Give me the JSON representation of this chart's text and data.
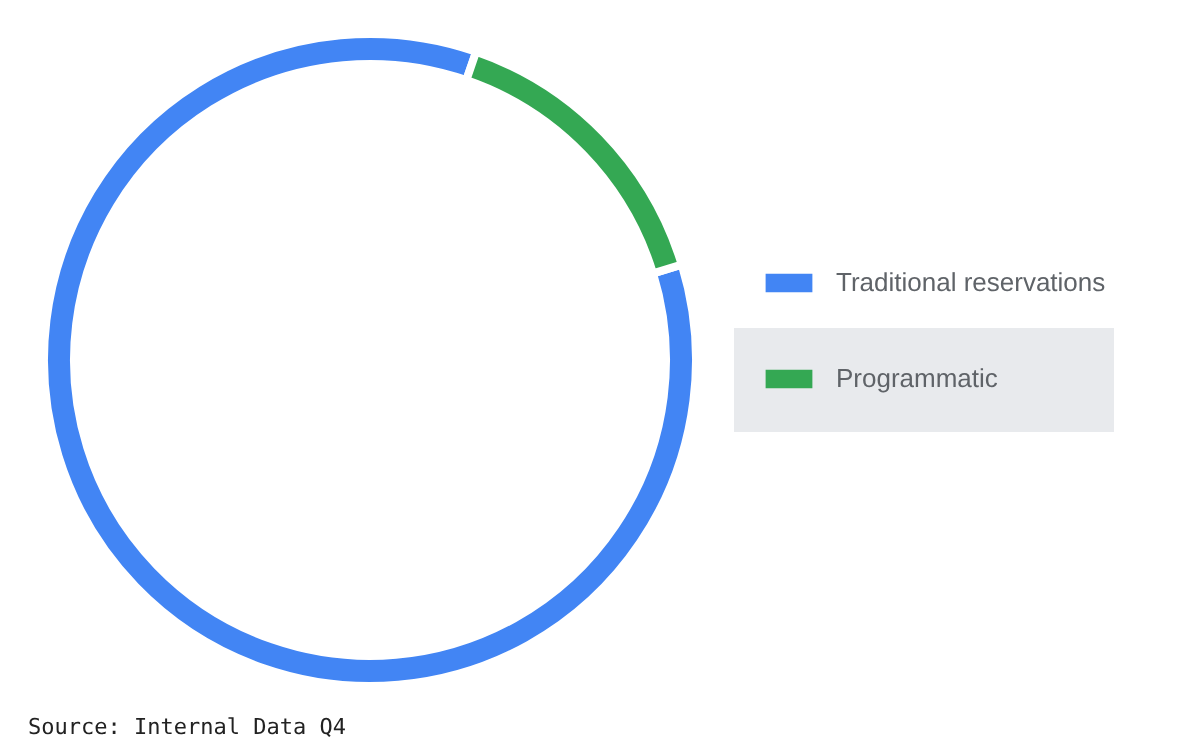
{
  "chart_data": {
    "type": "donut",
    "categories": [
      "Traditional reservations",
      "Programmatic"
    ],
    "values": [
      85,
      15
    ],
    "colors": [
      "#4285f4",
      "#34a853"
    ],
    "legend": "right",
    "annotations": [
      "Source: Internal Data Q4"
    ]
  }
}
